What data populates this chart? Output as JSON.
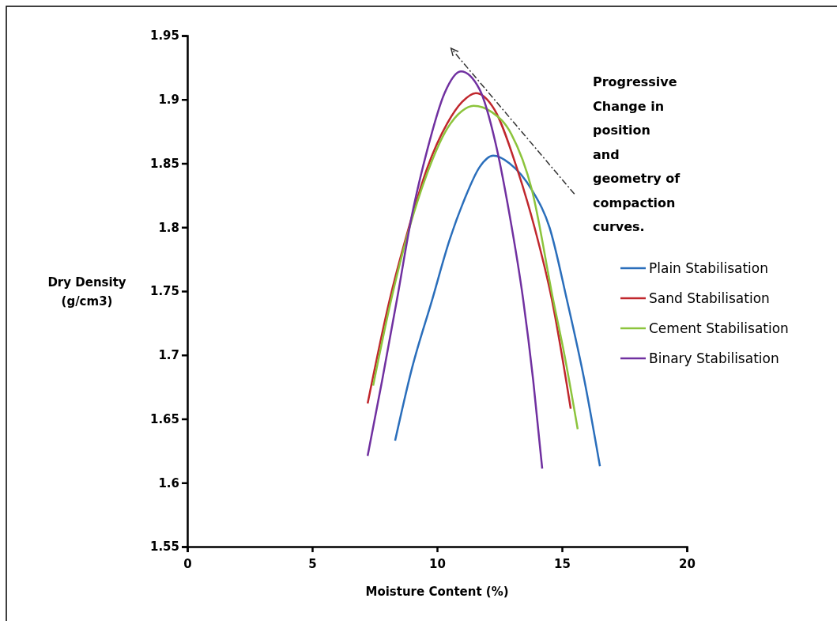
{
  "chart_data": {
    "type": "line",
    "xlabel": "Moisture Content (%)",
    "ylabel": "Dry Density (g/cm3)",
    "xlim": [
      0,
      20
    ],
    "xticks": [
      0,
      5,
      10,
      15,
      20
    ],
    "ylim": [
      1.55,
      1.95
    ],
    "yticks": [
      1.55,
      1.6,
      1.65,
      1.7,
      1.75,
      1.8,
      1.85,
      1.9,
      1.95
    ],
    "legend": "right",
    "grid": false,
    "annotations": [
      "Progressive Change in position and geometry of compaction curves."
    ],
    "series": [
      {
        "name": "Plain Stabilisation",
        "color": "#2a6ebb",
        "x": [
          8.32,
          9.0,
          9.8,
          10.5,
          11.1,
          11.7,
          12.25,
          12.9,
          13.8,
          14.5,
          15.2,
          15.9,
          16.52
        ],
        "values": [
          1.633,
          1.69,
          1.743,
          1.79,
          1.822,
          1.847,
          1.856,
          1.85,
          1.829,
          1.8,
          1.743,
          1.68,
          1.613
        ]
      },
      {
        "name": "Sand Stabilisation",
        "color": "#c0272d",
        "x": [
          7.22,
          8.1,
          8.8,
          9.6,
          10.4,
          11.0,
          11.55,
          12.3,
          13.2,
          13.9,
          14.6,
          15.35
        ],
        "values": [
          1.662,
          1.743,
          1.795,
          1.846,
          1.881,
          1.898,
          1.905,
          1.892,
          1.846,
          1.8,
          1.743,
          1.658
        ]
      },
      {
        "name": "Cement Stabilisation",
        "color": "#8cc43c",
        "x": [
          7.44,
          8.16,
          8.9,
          9.6,
          10.4,
          11.0,
          11.46,
          12.2,
          12.97,
          13.8,
          14.65,
          15.1,
          15.63
        ],
        "values": [
          1.676,
          1.743,
          1.8,
          1.842,
          1.877,
          1.891,
          1.895,
          1.89,
          1.873,
          1.829,
          1.743,
          1.7,
          1.642
        ]
      },
      {
        "name": "Binary Stabilisation",
        "color": "#7030a0",
        "x": [
          7.22,
          7.8,
          8.39,
          9.0,
          9.6,
          10.3,
          10.95,
          11.7,
          12.34,
          12.9,
          13.45,
          13.85,
          14.21
        ],
        "values": [
          1.621,
          1.68,
          1.743,
          1.81,
          1.86,
          1.905,
          1.922,
          1.908,
          1.866,
          1.81,
          1.743,
          1.68,
          1.611
        ]
      }
    ]
  }
}
